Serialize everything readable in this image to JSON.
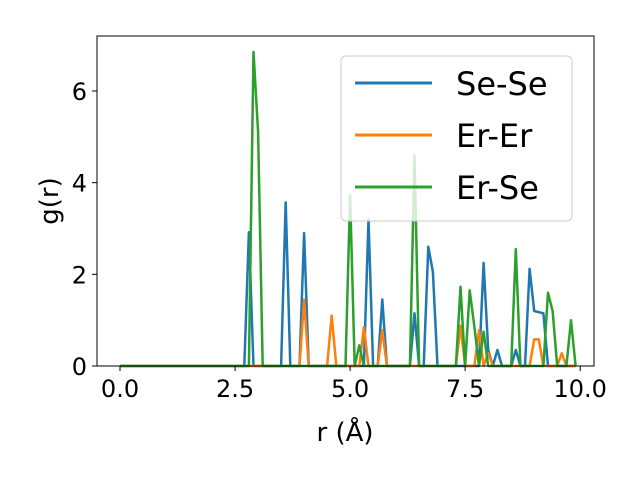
{
  "chart_data": {
    "type": "line",
    "title": "",
    "xlabel": "r (Å)",
    "ylabel": "g(r)",
    "xlim": [
      -0.5,
      10.3
    ],
    "ylim": [
      0,
      7.2
    ],
    "xticks": [
      0.0,
      2.5,
      5.0,
      7.5,
      10.0
    ],
    "xtick_labels": [
      "0.0",
      "2.5",
      "5.0",
      "7.5",
      "10.0"
    ],
    "yticks": [
      0,
      2,
      4,
      6
    ],
    "ytick_labels": [
      "0",
      "2",
      "4",
      "6"
    ],
    "grid": false,
    "legend_position": "top-right",
    "series": [
      {
        "name": "Se-Se",
        "color": "#1f77b4",
        "points": [
          [
            0.0,
            0
          ],
          [
            2.7,
            0
          ],
          [
            2.8,
            2.92
          ],
          [
            2.9,
            0
          ],
          [
            3.5,
            0
          ],
          [
            3.6,
            3.57
          ],
          [
            3.7,
            0
          ],
          [
            3.9,
            0
          ],
          [
            4.0,
            2.9
          ],
          [
            4.1,
            0
          ],
          [
            5.3,
            0
          ],
          [
            5.4,
            3.2
          ],
          [
            5.5,
            0
          ],
          [
            5.6,
            0
          ],
          [
            5.7,
            1.45
          ],
          [
            5.8,
            0
          ],
          [
            6.3,
            0
          ],
          [
            6.4,
            1.15
          ],
          [
            6.5,
            0
          ],
          [
            6.6,
            0
          ],
          [
            6.7,
            2.6
          ],
          [
            6.8,
            2.05
          ],
          [
            6.9,
            0
          ],
          [
            7.8,
            0
          ],
          [
            7.9,
            2.25
          ],
          [
            8.0,
            0.35
          ],
          [
            8.1,
            0
          ],
          [
            8.2,
            0.35
          ],
          [
            8.3,
            0
          ],
          [
            8.5,
            0
          ],
          [
            8.6,
            0.35
          ],
          [
            8.7,
            0
          ],
          [
            8.8,
            0
          ],
          [
            8.9,
            2.12
          ],
          [
            9.0,
            1.2
          ],
          [
            9.2,
            1.15
          ],
          [
            9.3,
            0
          ],
          [
            9.8,
            0
          ],
          [
            9.9,
            0
          ]
        ]
      },
      {
        "name": "Er-Er",
        "color": "#ff7f0e",
        "points": [
          [
            0.0,
            0
          ],
          [
            3.9,
            0
          ],
          [
            4.0,
            1.45
          ],
          [
            4.1,
            0
          ],
          [
            4.5,
            0
          ],
          [
            4.6,
            1.1
          ],
          [
            4.7,
            0
          ],
          [
            5.2,
            0
          ],
          [
            5.3,
            0.85
          ],
          [
            5.4,
            0
          ],
          [
            5.6,
            0
          ],
          [
            5.7,
            0.78
          ],
          [
            5.8,
            0
          ],
          [
            7.3,
            0
          ],
          [
            7.4,
            0.88
          ],
          [
            7.5,
            0
          ],
          [
            7.7,
            0
          ],
          [
            7.8,
            0.78
          ],
          [
            7.9,
            0
          ],
          [
            8.0,
            0.28
          ],
          [
            8.1,
            0
          ],
          [
            8.9,
            0
          ],
          [
            9.0,
            0.58
          ],
          [
            9.1,
            0.58
          ],
          [
            9.2,
            0
          ],
          [
            9.5,
            0
          ],
          [
            9.6,
            0.28
          ],
          [
            9.7,
            0
          ],
          [
            9.9,
            0
          ]
        ]
      },
      {
        "name": "Er-Se",
        "color": "#2ca02c",
        "points": [
          [
            0.0,
            0
          ],
          [
            2.8,
            0
          ],
          [
            2.9,
            6.85
          ],
          [
            3.0,
            5.1
          ],
          [
            3.1,
            0
          ],
          [
            4.9,
            0
          ],
          [
            5.0,
            3.73
          ],
          [
            5.1,
            0
          ],
          [
            5.2,
            0.45
          ],
          [
            5.3,
            0
          ],
          [
            6.3,
            0
          ],
          [
            6.4,
            4.6
          ],
          [
            6.5,
            0
          ],
          [
            7.3,
            0
          ],
          [
            7.4,
            1.73
          ],
          [
            7.5,
            0
          ],
          [
            7.6,
            1.65
          ],
          [
            7.7,
            0.85
          ],
          [
            7.8,
            0
          ],
          [
            7.9,
            0.75
          ],
          [
            8.0,
            0
          ],
          [
            8.5,
            0
          ],
          [
            8.6,
            2.55
          ],
          [
            8.7,
            0
          ],
          [
            9.2,
            0
          ],
          [
            9.3,
            1.6
          ],
          [
            9.4,
            1.2
          ],
          [
            9.5,
            0
          ],
          [
            9.7,
            0
          ],
          [
            9.8,
            1.0
          ],
          [
            9.9,
            0
          ]
        ]
      }
    ]
  }
}
